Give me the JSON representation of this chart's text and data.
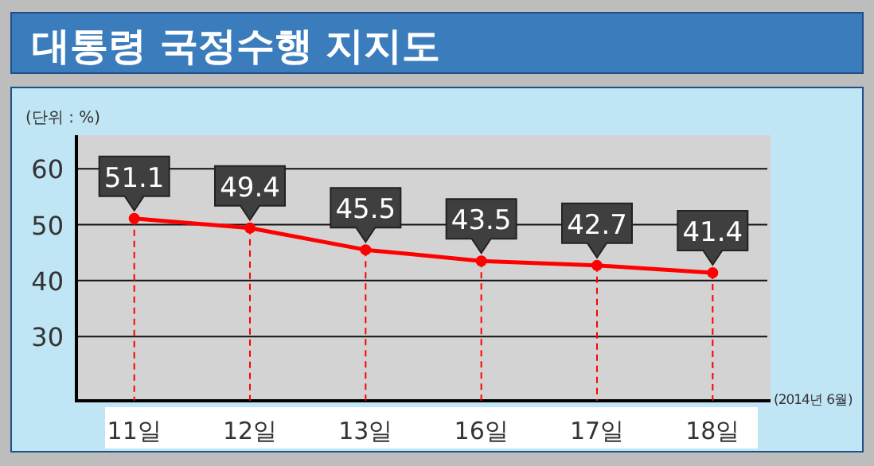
{
  "chart_data": {
    "type": "line",
    "title": "대통령 국정수행 지지도",
    "categories": [
      "11일",
      "12일",
      "13일",
      "16일",
      "17일",
      "18일"
    ],
    "series": [
      {
        "color": "#ff0000",
        "values": [
          51.1,
          49.4,
          45.5,
          43.5,
          42.7,
          41.4
        ]
      }
    ],
    "ylim": [
      18.5,
      66
    ],
    "yticks": [
      30,
      40,
      50,
      60
    ],
    "grid": "y",
    "marker": "circle",
    "line_style": "solid",
    "data_labels": true,
    "annotations": [
      "(단위 : %)",
      "(2014년 6월)"
    ]
  }
}
